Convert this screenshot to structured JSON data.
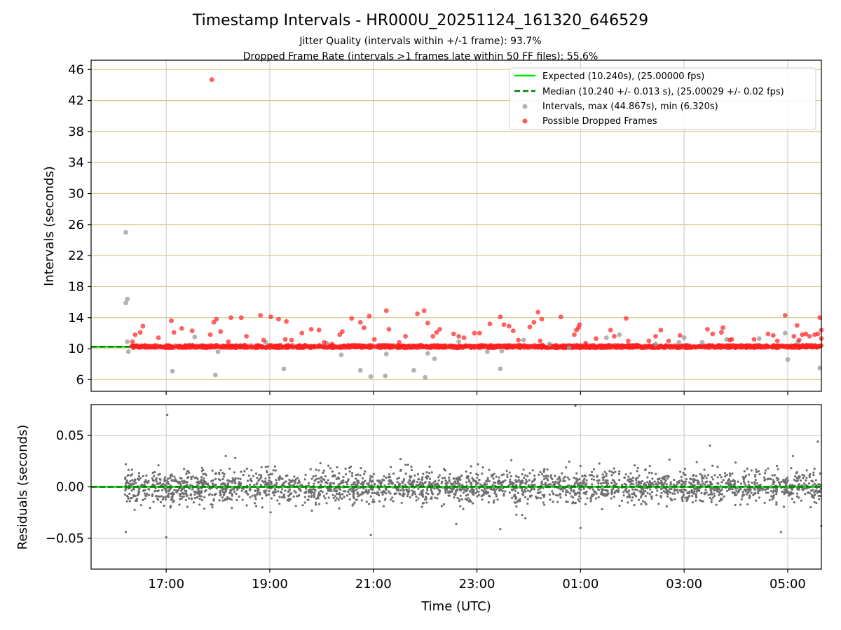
{
  "title": "Timestamp Intervals - HR000U_20251124_161320_646529",
  "subtitle_jitter": "Jitter Quality (intervals within +/-1 frame): 93.7%",
  "subtitle_dropped": "Dropped Frame Rate (intervals >1 frames late within 50 FF files): 55.6%",
  "colors": {
    "expected": "#00e000",
    "median": "#007a00",
    "interval": "#9a9a9a",
    "dropped": "#ff2020",
    "grid_top": "#d6c88a",
    "grid": "#c8c8c8",
    "residual": "#6e6e6e"
  },
  "chart_data": [
    {
      "type": "scatter",
      "panel": "intervals",
      "ylabel": "Intervals (seconds)",
      "xlabel": "",
      "xlim": [
        15.55,
        29.65
      ],
      "ylim": [
        4.5,
        47.2
      ],
      "yticks": [
        6,
        10,
        14,
        18,
        22,
        26,
        30,
        34,
        38,
        42,
        46
      ],
      "ytick_labels": [
        "6",
        "10",
        "14",
        "18",
        "22",
        "26",
        "30",
        "34",
        "38",
        "42",
        "46"
      ],
      "grid": "horizontal",
      "expected": 10.24,
      "median": 10.24,
      "legend_position": "top-right",
      "legend": [
        "Expected (10.240s), (25.00000 fps)",
        "Median (10.240 +/- 0.013 s), (25.00029 +/- 0.02 fps)",
        "Intervals, max (44.867s), min (6.320s)",
        "Possible Dropped Frames"
      ],
      "series": [
        {
          "name": "Intervals",
          "points": [
            [
              16.22,
              25.0
            ],
            [
              16.22,
              15.9
            ],
            [
              16.25,
              16.4
            ],
            [
              16.25,
              10.9
            ],
            [
              16.27,
              9.6
            ],
            [
              17.12,
              7.1
            ],
            [
              17.95,
              6.6
            ],
            [
              18.0,
              9.6
            ],
            [
              19.27,
              7.4
            ],
            [
              20.75,
              7.2
            ],
            [
              20.95,
              6.4
            ],
            [
              21.23,
              6.5
            ],
            [
              21.78,
              7.2
            ],
            [
              22.0,
              6.3
            ],
            [
              22.18,
              8.7
            ],
            [
              23.45,
              7.4
            ],
            [
              20.38,
              9.2
            ],
            [
              21.25,
              9.3
            ],
            [
              22.05,
              9.4
            ],
            [
              23.2,
              9.6
            ],
            [
              23.48,
              9.7
            ],
            [
              24.78,
              10.1
            ],
            [
              25.5,
              11.4
            ],
            [
              25.75,
              11.8
            ],
            [
              26.45,
              10.6
            ],
            [
              27.0,
              11.4
            ],
            [
              27.35,
              10.8
            ],
            [
              27.82,
              11.2
            ],
            [
              28.45,
              11.3
            ],
            [
              28.95,
              12.0
            ],
            [
              29.0,
              8.6
            ],
            [
              29.62,
              7.5
            ],
            [
              29.2,
              10.9
            ],
            [
              24.4,
              10.6
            ],
            [
              18.92,
              10.8
            ],
            [
              17.55,
              11.5
            ],
            [
              20.1,
              10.7
            ],
            [
              22.65,
              10.9
            ],
            [
              23.9,
              11.1
            ],
            [
              26.9,
              10.8
            ]
          ]
        },
        {
          "name": "Possible Dropped Frames",
          "points": [
            [
              17.88,
              44.7
            ],
            [
              16.35,
              10.9
            ],
            [
              16.4,
              11.8
            ],
            [
              16.5,
              12.1
            ],
            [
              16.55,
              12.9
            ],
            [
              16.85,
              11.4
            ],
            [
              17.1,
              13.6
            ],
            [
              17.15,
              12.1
            ],
            [
              17.3,
              12.6
            ],
            [
              17.5,
              12.3
            ],
            [
              17.85,
              11.8
            ],
            [
              17.92,
              13.4
            ],
            [
              17.97,
              13.8
            ],
            [
              18.05,
              12.2
            ],
            [
              18.25,
              14.0
            ],
            [
              18.45,
              14.0
            ],
            [
              18.55,
              11.6
            ],
            [
              18.82,
              14.3
            ],
            [
              18.88,
              11.1
            ],
            [
              19.02,
              14.1
            ],
            [
              19.17,
              13.8
            ],
            [
              19.3,
              11.2
            ],
            [
              19.32,
              13.5
            ],
            [
              19.42,
              11.1
            ],
            [
              19.62,
              12.0
            ],
            [
              19.8,
              12.5
            ],
            [
              19.95,
              12.4
            ],
            [
              20.05,
              10.8
            ],
            [
              20.35,
              11.8
            ],
            [
              20.4,
              12.2
            ],
            [
              20.58,
              13.9
            ],
            [
              20.75,
              13.4
            ],
            [
              20.82,
              12.7
            ],
            [
              20.92,
              14.2
            ],
            [
              21.02,
              11.2
            ],
            [
              21.25,
              14.9
            ],
            [
              21.3,
              12.5
            ],
            [
              21.62,
              11.6
            ],
            [
              21.85,
              14.5
            ],
            [
              21.98,
              14.9
            ],
            [
              22.05,
              13.3
            ],
            [
              22.15,
              11.6
            ],
            [
              22.22,
              12.1
            ],
            [
              22.28,
              12.5
            ],
            [
              22.55,
              11.9
            ],
            [
              22.65,
              11.6
            ],
            [
              22.75,
              11.4
            ],
            [
              22.95,
              12.0
            ],
            [
              23.05,
              12.0
            ],
            [
              23.25,
              13.2
            ],
            [
              23.45,
              14.1
            ],
            [
              23.52,
              13.1
            ],
            [
              23.62,
              12.9
            ],
            [
              23.7,
              12.3
            ],
            [
              23.8,
              11.1
            ],
            [
              24.02,
              12.8
            ],
            [
              24.1,
              13.4
            ],
            [
              24.18,
              14.7
            ],
            [
              24.25,
              13.8
            ],
            [
              24.22,
              11.0
            ],
            [
              24.62,
              14.1
            ],
            [
              24.88,
              11.8
            ],
            [
              24.92,
              12.4
            ],
            [
              24.96,
              12.7
            ],
            [
              24.98,
              13.1
            ],
            [
              25.3,
              11.3
            ],
            [
              25.58,
              12.4
            ],
            [
              25.65,
              11.6
            ],
            [
              25.88,
              13.9
            ],
            [
              25.92,
              11.0
            ],
            [
              26.32,
              11.0
            ],
            [
              26.45,
              11.6
            ],
            [
              26.55,
              12.4
            ],
            [
              26.7,
              11.0
            ],
            [
              26.92,
              11.7
            ],
            [
              27.45,
              12.5
            ],
            [
              27.55,
              11.9
            ],
            [
              27.72,
              12.1
            ],
            [
              27.75,
              12.7
            ],
            [
              27.88,
              11.1
            ],
            [
              27.92,
              11.2
            ],
            [
              28.35,
              11.2
            ],
            [
              28.62,
              11.9
            ],
            [
              28.72,
              11.7
            ],
            [
              28.8,
              11.0
            ],
            [
              28.95,
              14.3
            ],
            [
              29.12,
              11.6
            ],
            [
              29.18,
              13.0
            ],
            [
              29.22,
              11.1
            ],
            [
              29.28,
              11.8
            ],
            [
              29.35,
              11.9
            ],
            [
              29.42,
              11.6
            ],
            [
              29.52,
              11.8
            ],
            [
              29.58,
              11.9
            ],
            [
              29.62,
              14.0
            ],
            [
              29.65,
              12.4
            ],
            [
              29.65,
              11.3
            ],
            [
              20.2,
              10.6
            ],
            [
              18.2,
              10.9
            ],
            [
              21.5,
              10.8
            ],
            [
              25.1,
              10.7
            ]
          ]
        }
      ],
      "dense_band": {
        "name": "Possible Dropped Frames",
        "from": 16.33,
        "to": 29.65,
        "center": 10.27,
        "spread": 0.15
      }
    },
    {
      "type": "scatter",
      "panel": "residuals",
      "ylabel": "Residuals (seconds)",
      "xlabel": "Time (UTC)",
      "xlim": [
        15.55,
        29.65
      ],
      "ylim": [
        -0.08,
        0.08
      ],
      "xticks": [
        17,
        19,
        21,
        23,
        25,
        27,
        29
      ],
      "xtick_labels": [
        "17:00",
        "19:00",
        "21:00",
        "23:00",
        "01:00",
        "03:00",
        "05:00"
      ],
      "yticks": [
        -0.05,
        0.0,
        0.05
      ],
      "ytick_labels": [
        "−0.05",
        "0.00",
        "0.05"
      ],
      "grid": "both",
      "zero_line": 0.0,
      "residual_range": [
        16.2,
        29.65
      ],
      "residual_typical": 0.008,
      "outliers": [
        [
          17.02,
          0.07
        ],
        [
          17.0,
          -0.049
        ],
        [
          16.22,
          -0.044
        ],
        [
          16.22,
          0.022
        ],
        [
          18.15,
          0.03
        ],
        [
          20.95,
          -0.047
        ],
        [
          24.9,
          0.079
        ],
        [
          25.0,
          -0.04
        ],
        [
          28.87,
          -0.044
        ],
        [
          29.58,
          0.044
        ],
        [
          29.65,
          -0.038
        ],
        [
          29.1,
          0.03
        ],
        [
          27.5,
          0.04
        ],
        [
          23.45,
          -0.041
        ],
        [
          22.6,
          -0.036
        ]
      ]
    }
  ]
}
